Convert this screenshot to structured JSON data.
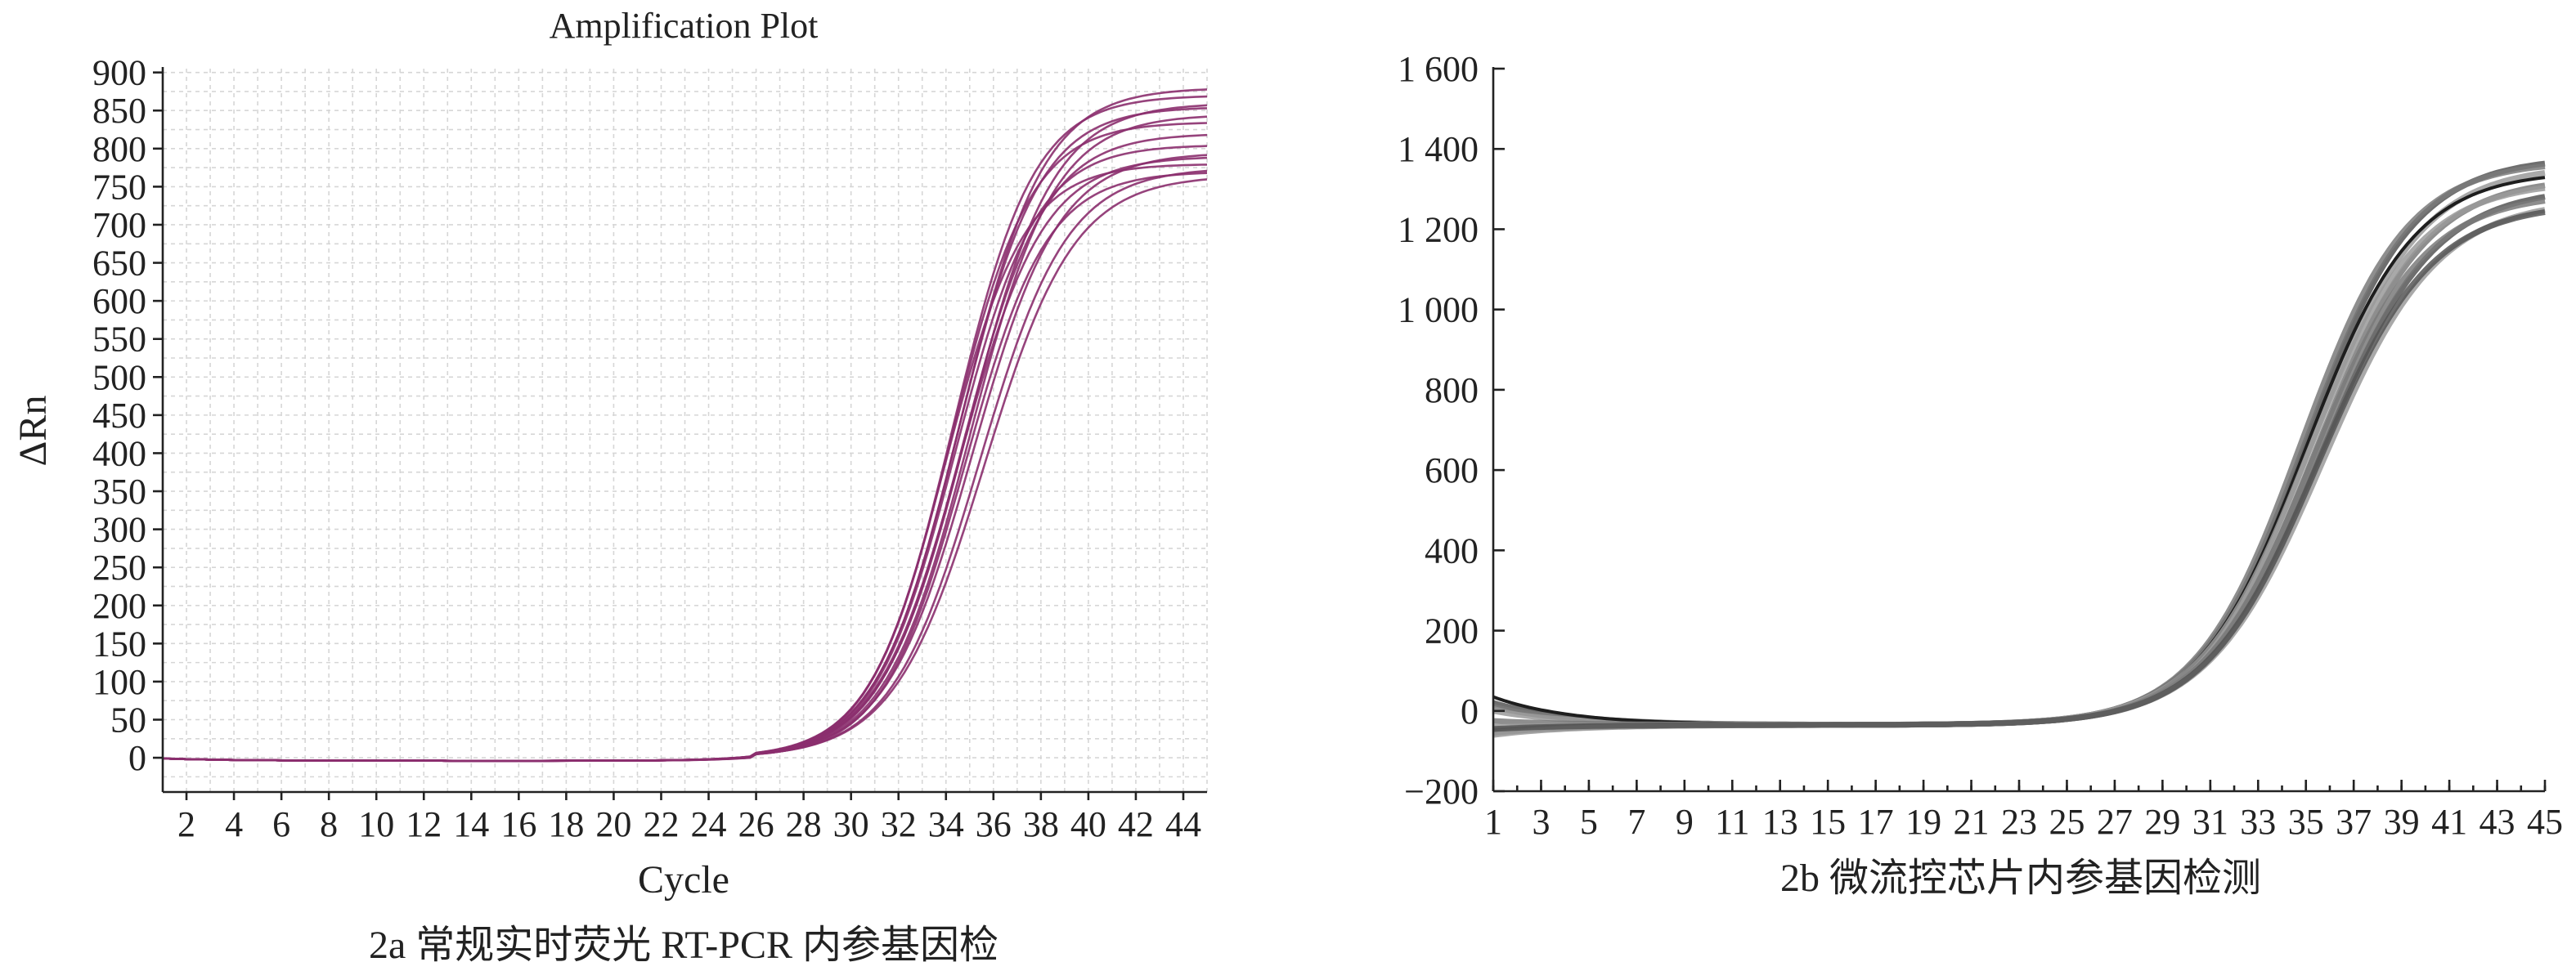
{
  "chart_data": [
    {
      "type": "line",
      "panel": "2a",
      "title": "Amplification Plot",
      "xlabel": "Cycle",
      "ylabel": "ΔRn",
      "caption": "2a 常规实时荧光 RT-PCR 内参基因检",
      "xlim": [
        1,
        45
      ],
      "ylim": [
        -45,
        905
      ],
      "grid": true,
      "line_color": "#8b2f6e",
      "x_ticks": [
        "2",
        "4",
        "6",
        "8",
        "10",
        "12",
        "14",
        "16",
        "18",
        "20",
        "22",
        "24",
        "26",
        "28",
        "30",
        "32",
        "34",
        "36",
        "38",
        "40",
        "42",
        "44"
      ],
      "y_ticks": [
        "0",
        "50",
        "100",
        "150",
        "200",
        "250",
        "300",
        "350",
        "400",
        "450",
        "500",
        "550",
        "600",
        "650",
        "700",
        "750",
        "800",
        "850",
        "900"
      ],
      "curve_model": "approximate sigmoid traces read from figure",
      "series": [
        {
          "plateau": 880,
          "midpoint": 34.6,
          "slope": 1.75
        },
        {
          "plateau": 870,
          "midpoint": 34.3,
          "slope": 1.7
        },
        {
          "plateau": 860,
          "midpoint": 34.9,
          "slope": 1.8
        },
        {
          "plateau": 855,
          "midpoint": 34.5,
          "slope": 1.72
        },
        {
          "plateau": 845,
          "midpoint": 35.0,
          "slope": 1.78
        },
        {
          "plateau": 835,
          "midpoint": 34.2,
          "slope": 1.68
        },
        {
          "plateau": 820,
          "midpoint": 34.7,
          "slope": 1.74
        },
        {
          "plateau": 805,
          "midpoint": 34.4,
          "slope": 1.7
        },
        {
          "plateau": 795,
          "midpoint": 35.1,
          "slope": 1.82
        },
        {
          "plateau": 790,
          "midpoint": 34.6,
          "slope": 1.76
        },
        {
          "plateau": 780,
          "midpoint": 34.0,
          "slope": 1.65
        },
        {
          "plateau": 775,
          "midpoint": 35.4,
          "slope": 1.85
        },
        {
          "plateau": 770,
          "midpoint": 34.8,
          "slope": 1.72
        },
        {
          "plateau": 765,
          "midpoint": 35.6,
          "slope": 1.9
        }
      ]
    },
    {
      "type": "line",
      "panel": "2b",
      "xlabel": "",
      "ylabel": "",
      "caption": "2b 微流控芯片内参基因检测",
      "xlim": [
        1,
        45
      ],
      "ylim": [
        -200,
        1600
      ],
      "grid": false,
      "line_color": "#6e6e6e",
      "x_ticks": [
        "1",
        "3",
        "5",
        "7",
        "9",
        "11",
        "13",
        "15",
        "17",
        "19",
        "21",
        "23",
        "25",
        "27",
        "29",
        "31",
        "33",
        "35",
        "37",
        "39",
        "41",
        "43",
        "45"
      ],
      "y_ticks": [
        "−200",
        "0",
        "200",
        "400",
        "600",
        "800",
        "1 000",
        "1 200",
        "1 400",
        "1 600"
      ],
      "curve_model": "approximate sigmoid traces read from figure",
      "series": [
        {
          "plateau": 1380,
          "midpoint": 35.0,
          "slope": 2.25,
          "start": 20
        },
        {
          "plateau": 1370,
          "midpoint": 34.8,
          "slope": 2.2,
          "start": 10
        },
        {
          "plateau": 1360,
          "midpoint": 35.2,
          "slope": 2.3,
          "start": 0
        },
        {
          "plateau": 1345,
          "midpoint": 35.0,
          "slope": 2.25,
          "start": 35,
          "dark": true
        },
        {
          "plateau": 1330,
          "midpoint": 35.4,
          "slope": 2.3,
          "start": -25
        },
        {
          "plateau": 1320,
          "midpoint": 35.1,
          "slope": 2.28,
          "start": -40
        },
        {
          "plateau": 1305,
          "midpoint": 35.6,
          "slope": 2.35,
          "start": -50
        },
        {
          "plateau": 1290,
          "midpoint": 35.3,
          "slope": 2.3,
          "start": -55
        },
        {
          "plateau": 1275,
          "midpoint": 35.7,
          "slope": 2.4,
          "start": -60
        },
        {
          "plateau": 1265,
          "midpoint": 35.5,
          "slope": 2.35,
          "start": -45
        }
      ]
    }
  ]
}
